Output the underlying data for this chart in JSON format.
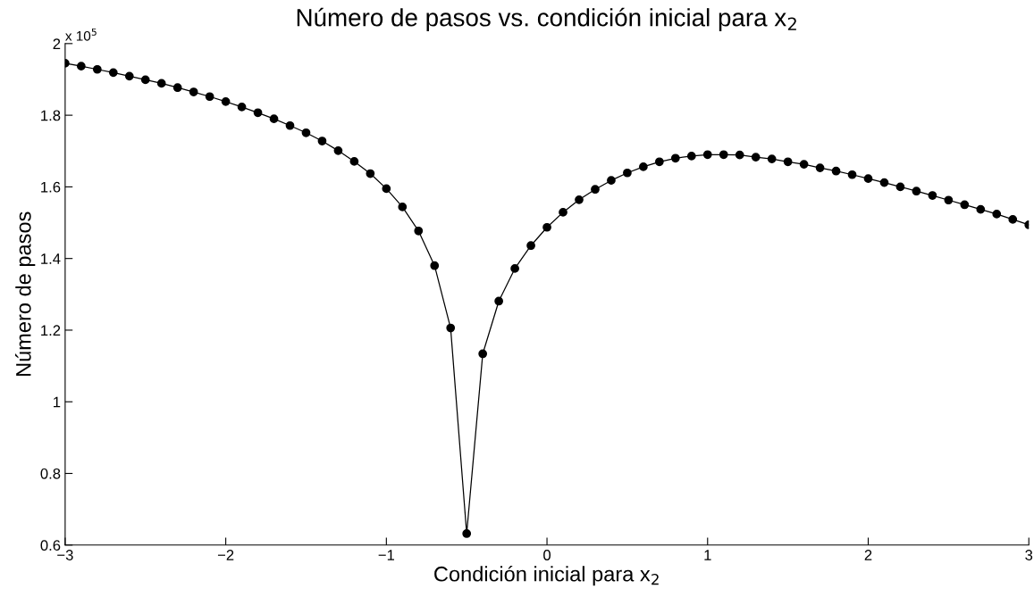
{
  "chart_data": {
    "type": "line",
    "title": "Número de pasos vs. condición inicial para x$_{2}$",
    "xlabel": "Condición inicial para x$_{2}$",
    "ylabel": "Número de pasos",
    "annotations": [
      "x 10$^{5}$"
    ],
    "x": [
      -3,
      -2.9,
      -2.8,
      -2.7,
      -2.6,
      -2.5,
      -2.4,
      -2.3,
      -2.2,
      -2.1,
      -2,
      -1.9,
      -1.8,
      -1.7,
      -1.6,
      -1.5,
      -1.4,
      -1.3,
      -1.2,
      -1.1,
      -1,
      -0.9,
      -0.8,
      -0.7,
      -0.6,
      -0.5,
      -0.4,
      -0.3,
      -0.2,
      -0.1,
      0,
      0.1,
      0.2,
      0.3,
      0.4,
      0.5,
      0.6,
      0.7,
      0.8,
      0.9,
      1,
      1.1,
      1.2,
      1.3,
      1.4,
      1.5,
      1.6,
      1.7,
      1.8,
      1.9,
      2,
      2.1,
      2.2,
      2.3,
      2.4,
      2.5,
      2.6,
      2.7,
      2.8,
      2.9,
      3
    ],
    "series": [
      {
        "color": "#000000",
        "values": [
          1.945,
          1.937,
          1.928,
          1.919,
          1.909,
          1.899,
          1.889,
          1.877,
          1.865,
          1.852,
          1.838,
          1.823,
          1.807,
          1.79,
          1.771,
          1.751,
          1.728,
          1.701,
          1.671,
          1.637,
          1.595,
          1.544,
          1.477,
          1.38,
          1.206,
          0.632,
          1.134,
          1.281,
          1.372,
          1.436,
          1.487,
          1.529,
          1.564,
          1.593,
          1.618,
          1.639,
          1.656,
          1.67,
          1.68,
          1.686,
          1.69,
          1.69,
          1.689,
          1.683,
          1.678,
          1.67,
          1.663,
          1.653,
          1.644,
          1.634,
          1.623,
          1.612,
          1.6,
          1.588,
          1.576,
          1.563,
          1.55,
          1.537,
          1.524,
          1.509,
          1.494
        ]
      }
    ],
    "xlim": [
      -3,
      3
    ],
    "xticks": [
      {
        "value": -3,
        "label": "−3"
      },
      {
        "value": -2,
        "label": "−2"
      },
      {
        "value": -1,
        "label": "−1"
      },
      0,
      1,
      2,
      3
    ],
    "ylim": [
      0.6,
      2
    ],
    "yticks": [
      0.6,
      0.8,
      1,
      1.2,
      1.4,
      1.6,
      1.8,
      2
    ],
    "marker": "circle",
    "line_style": "solid",
    "grid": false,
    "legend": false
  }
}
